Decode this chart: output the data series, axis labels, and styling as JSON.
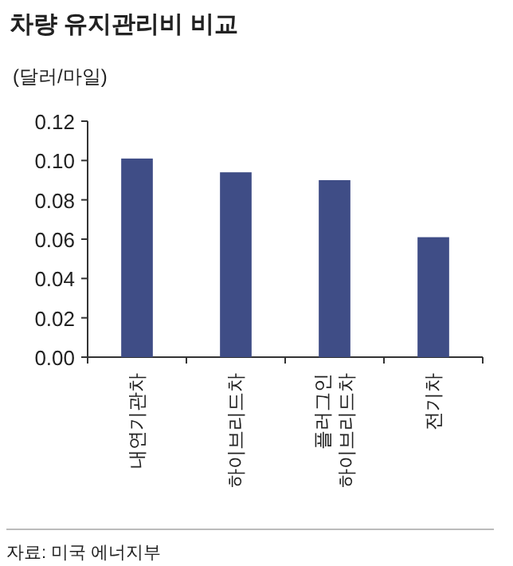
{
  "chart_data": {
    "type": "bar",
    "title": "차량 유지관리비 비교",
    "ylabel": "(달러/마일)",
    "categories": [
      "내연기관차",
      "하이브리드차",
      "플러그인\n하이브리드차",
      "전기차"
    ],
    "values": [
      0.101,
      0.094,
      0.09,
      0.061
    ],
    "color": "#3f4d86",
    "ylim": [
      0,
      0.12
    ],
    "yticks": [
      {
        "value": 0,
        "label": "0.00"
      },
      {
        "value": 0.02,
        "label": "0.02"
      },
      {
        "value": 0.04,
        "label": "0.04"
      },
      {
        "value": 0.06,
        "label": "0.06"
      },
      {
        "value": 0.08,
        "label": "0.08"
      },
      {
        "value": 0.1,
        "label": "0.10"
      },
      {
        "value": 0.12,
        "label": "0.12"
      }
    ],
    "grid": false,
    "annotations": [
      "자료: 미국 에너지부"
    ]
  }
}
